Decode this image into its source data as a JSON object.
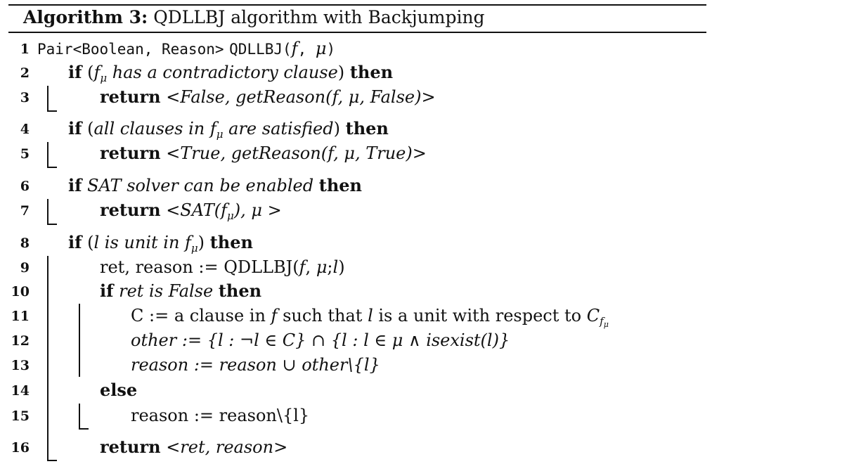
{
  "caption": {
    "label": "Algorithm 3:",
    "text": "QDLLBJ algorithm with Backjumping"
  },
  "kw": {
    "if": "if",
    "then": "then",
    "return": "return",
    "else": "else"
  },
  "lines": [
    {
      "num": "1",
      "sig_type": "Pair<Boolean, Reason>",
      "sig_name": "QDLLBJ(",
      "f": "f",
      "comma": ", ",
      "mu": "μ",
      "close": ")"
    },
    {
      "num": "2",
      "lp": "(",
      "f": "f",
      "sub": "μ",
      "cond": " has a contradictory clause",
      "rp": ")"
    },
    {
      "num": "3",
      "lt": "<",
      "body": "False, getReason(f, μ, False)",
      "gt": ">"
    },
    {
      "num": "4",
      "lp": "(",
      "cond_a": "all clauses in ",
      "f": "f",
      "sub": "μ",
      "cond_b": " are satisfied",
      "rp": ")"
    },
    {
      "num": "5",
      "lt": "<",
      "body": "True, getReason(f, μ, True)",
      "gt": ">"
    },
    {
      "num": "6",
      "cond": "SAT solver can be enabled"
    },
    {
      "num": "7",
      "lt": "<",
      "body_a": "SAT(f",
      "sub": "μ",
      "body_b": "), μ ",
      "gt": ">"
    },
    {
      "num": "8",
      "lp": "(",
      "l": "l",
      "cond_a": " is unit in ",
      "f": "f",
      "sub": "μ",
      "rp": ")"
    },
    {
      "num": "9",
      "lhs": "ret, reason := QDLLBJ(",
      "f": "f",
      "mid": ", ",
      "mu": "μ",
      "semi": ";",
      "l": "l",
      "close": ")"
    },
    {
      "num": "10",
      "cond": "ret is False"
    },
    {
      "num": "11",
      "pre": "C := a clause in ",
      "f": "f",
      "mid": " such that ",
      "l": "l",
      "post": " is a unit with respect to ",
      "C": "C",
      "sub_f": "f",
      "sub_mu": "μ"
    },
    {
      "num": "12",
      "text": "other := {l : ¬l ∈ C} ∩ {l : l ∈ μ ∧ isexist(l)}"
    },
    {
      "num": "13",
      "text": "reason := reason ∪ other\\{l}"
    },
    {
      "num": "14"
    },
    {
      "num": "15",
      "text": "reason := reason\\{l}"
    },
    {
      "num": "16",
      "lt": "<",
      "body": "ret, reason",
      "gt": ">"
    }
  ]
}
